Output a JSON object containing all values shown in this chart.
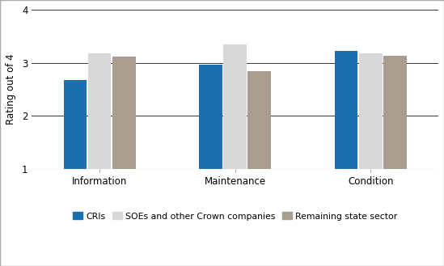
{
  "categories": [
    "Information",
    "Maintenance",
    "Condition"
  ],
  "series": {
    "CRIs": [
      2.67,
      2.97,
      3.22
    ],
    "SOEs and other Crown companies": [
      3.18,
      3.35,
      3.18
    ],
    "Remaining state sector": [
      3.12,
      2.85,
      3.13
    ]
  },
  "colors": {
    "CRIs": "#1a6fae",
    "SOEs and other Crown companies": "#d8d8d8",
    "Remaining state sector": "#a89d8e"
  },
  "ylabel": "Rating out of 4",
  "ylim": [
    1,
    4
  ],
  "yticks": [
    1,
    2,
    3,
    4
  ],
  "bar_width": 0.18,
  "background_color": "#ffffff",
  "grid_color": "#333333",
  "border_color": "#aaaaaa",
  "legend_order": [
    "CRIs",
    "SOEs and other Crown companies",
    "Remaining state sector"
  ]
}
